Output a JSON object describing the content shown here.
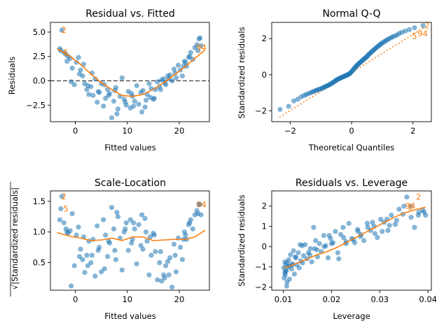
{
  "colors": {
    "points": "#1f77b4",
    "smooth": "#ff7f0e",
    "refline": "#555555"
  },
  "chart_data": [
    {
      "type": "scatter",
      "title": "Residual vs. Fitted",
      "xlabel": "Fitted values",
      "ylabel": "Residuals",
      "xlim": [
        -4.8,
        25.8
      ],
      "ylim": [
        -4.2,
        6.0
      ],
      "xticks": [
        0,
        10,
        20
      ],
      "yticks": [
        -2.5,
        0.0,
        2.5,
        5.0
      ],
      "xtick_labels": [
        "0",
        "10",
        "20"
      ],
      "ytick_labels": [
        "−2.5",
        "0.0",
        "2.5",
        "5.0"
      ],
      "hline": 0,
      "x": [
        -3.0,
        -2.6,
        -2.2,
        -1.8,
        -1.4,
        -1.0,
        -0.6,
        -0.2,
        0.2,
        0.6,
        1.0,
        1.4,
        1.8,
        2.2,
        2.6,
        3.0,
        3.4,
        3.8,
        4.2,
        4.6,
        5.0,
        5.4,
        5.8,
        6.2,
        6.6,
        7.0,
        7.4,
        7.8,
        8.2,
        8.6,
        9.0,
        9.4,
        9.8,
        10.2,
        10.6,
        11.0,
        11.4,
        11.8,
        12.2,
        12.6,
        13.0,
        13.4,
        13.8,
        14.2,
        14.6,
        15.0,
        15.4,
        15.8,
        16.2,
        16.6,
        17.0,
        17.4,
        17.8,
        18.2,
        18.6,
        19.0,
        19.4,
        19.8,
        20.2,
        20.6,
        21.0,
        21.4,
        21.8,
        22.2,
        22.6,
        23.0,
        23.4,
        23.8,
        24.2,
        -2.8,
        -1.6,
        0.8,
        3.2,
        5.6,
        8.0,
        10.8,
        13.6,
        16.4,
        19.2,
        22.0,
        24.0,
        -0.8,
        2.4,
        6.4,
        9.6,
        12.8,
        15.2,
        18.0,
        20.8,
        23.6,
        4.4,
        11.2,
        17.2,
        1.6,
        7.6,
        14.4,
        21.2
      ],
      "y": [
        3.3,
        5.2,
        2.9,
        2.7,
        2.5,
        2.3,
        1.3,
        -0.4,
        1.9,
        2.4,
        1.1,
        0.5,
        -0.3,
        -0.9,
        -1.4,
        -0.6,
        -1.5,
        0.2,
        -2.2,
        -1.2,
        -0.3,
        -2.6,
        -1.8,
        -0.9,
        -1.3,
        -3.8,
        -2.1,
        -0.7,
        -2.9,
        -1.6,
        0.3,
        -1.9,
        -2.5,
        -1.1,
        -2.8,
        -1.6,
        -2.1,
        -0.5,
        -2.4,
        -1.2,
        -1.0,
        -2.7,
        -1.4,
        -0.3,
        -0.8,
        -1.9,
        -0.9,
        -0.1,
        -0.6,
        0.1,
        0.2,
        -0.4,
        0.5,
        0.6,
        0.0,
        1.2,
        0.3,
        1.6,
        1.1,
        0.5,
        2.0,
        1.5,
        2.4,
        2.9,
        2.2,
        3.4,
        3.7,
        4.3,
        3.6,
        3.1,
        2.0,
        0.7,
        0.8,
        -0.4,
        -3.4,
        -1.3,
        -2.0,
        -0.9,
        0.8,
        2.5,
        4.4,
        -0.1,
        -0.5,
        -1.5,
        -2.2,
        -3.2,
        -1.8,
        0.2,
        1.5,
        3.1,
        -1.1,
        -2.6,
        -0.2,
        1.7,
        -1.0,
        -1.7,
        1.9
      ],
      "smooth_x": [
        -3.5,
        -1,
        1,
        3,
        5,
        7,
        9,
        11,
        13,
        15,
        17,
        19,
        21,
        23,
        25
      ],
      "smooth_y": [
        3.3,
        2.5,
        1.7,
        0.7,
        -0.2,
        -0.9,
        -1.5,
        -1.6,
        -1.4,
        -0.9,
        -0.2,
        0.6,
        1.4,
        2.3,
        3.2
      ],
      "annotations": [
        {
          "text": "2",
          "x": -3.0,
          "y": 5.2
        },
        {
          "text": "5",
          "x": -2.6,
          "y": 2.9
        },
        {
          "text": "94",
          "x": 23.0,
          "y": 3.4
        }
      ]
    },
    {
      "type": "scatter",
      "title": "Normal Q-Q",
      "xlabel": "Theoretical Quantiles",
      "ylabel": "Standardized residuals",
      "xlim": [
        -2.6,
        2.6
      ],
      "ylim": [
        -2.6,
        2.9
      ],
      "xticks": [
        -2,
        0,
        2
      ],
      "yticks": [
        -2,
        0,
        2
      ],
      "xtick_labels": [
        "−2",
        "0",
        "2"
      ],
      "ytick_labels": [
        "−2",
        "0",
        "2"
      ],
      "refline": [
        [
          -2.35,
          -2.35
        ],
        [
          2.35,
          2.6
        ]
      ],
      "q_x": [
        -2.33,
        -2.05,
        -1.88,
        -1.75,
        -1.64,
        -1.55,
        -1.48,
        -1.41,
        -1.34,
        -1.28,
        -1.23,
        -1.17,
        -1.13,
        -1.08,
        -1.04,
        -0.99,
        -0.95,
        -0.92,
        -0.88,
        -0.84,
        -0.81,
        -0.77,
        -0.74,
        -0.71,
        -0.67,
        -0.64,
        -0.61,
        -0.58,
        -0.55,
        -0.52,
        -0.5,
        -0.47,
        -0.44,
        -0.41,
        -0.39,
        -0.36,
        -0.33,
        -0.31,
        -0.28,
        -0.25,
        -0.23,
        -0.2,
        -0.18,
        -0.15,
        -0.13,
        -0.1,
        -0.08,
        -0.05,
        -0.03,
        0.0,
        0.03,
        0.05,
        0.08,
        0.1,
        0.13,
        0.15,
        0.18,
        0.2,
        0.23,
        0.25,
        0.28,
        0.31,
        0.33,
        0.36,
        0.39,
        0.41,
        0.44,
        0.47,
        0.5,
        0.52,
        0.55,
        0.58,
        0.61,
        0.64,
        0.67,
        0.71,
        0.74,
        0.77,
        0.81,
        0.84,
        0.88,
        0.92,
        0.95,
        0.99,
        1.04,
        1.08,
        1.13,
        1.17,
        1.23,
        1.28,
        1.34,
        1.41,
        1.48,
        1.55,
        1.64,
        1.75,
        1.88,
        2.05,
        2.33
      ],
      "q_y": [
        -1.92,
        -1.75,
        -1.45,
        -1.35,
        -1.22,
        -1.15,
        -1.1,
        -1.05,
        -1.0,
        -0.95,
        -0.92,
        -0.88,
        -0.85,
        -0.82,
        -0.8,
        -0.77,
        -0.74,
        -0.71,
        -0.68,
        -0.65,
        -0.62,
        -0.6,
        -0.57,
        -0.54,
        -0.5,
        -0.47,
        -0.44,
        -0.4,
        -0.37,
        -0.33,
        -0.3,
        -0.27,
        -0.24,
        -0.22,
        -0.2,
        -0.18,
        -0.16,
        -0.14,
        -0.12,
        -0.1,
        -0.08,
        -0.06,
        -0.04,
        -0.02,
        0.0,
        0.02,
        0.05,
        0.08,
        0.12,
        0.17,
        0.22,
        0.27,
        0.33,
        0.38,
        0.42,
        0.47,
        0.52,
        0.56,
        0.6,
        0.64,
        0.68,
        0.72,
        0.76,
        0.8,
        0.84,
        0.88,
        0.92,
        0.96,
        1.0,
        1.05,
        1.1,
        1.15,
        1.2,
        1.25,
        1.3,
        1.35,
        1.4,
        1.45,
        1.5,
        1.55,
        1.6,
        1.65,
        1.7,
        1.75,
        1.8,
        1.85,
        1.9,
        1.95,
        2.0,
        2.05,
        2.1,
        2.15,
        2.2,
        2.28,
        2.35,
        2.42,
        2.5,
        2.6,
        2.72
      ],
      "annotations": [
        {
          "text": "5",
          "x": 1.92,
          "y": 2.15
        },
        {
          "text": "94",
          "x": 2.1,
          "y": 2.28
        },
        {
          "text": "2",
          "x": 2.33,
          "y": 2.72
        }
      ]
    },
    {
      "type": "scatter",
      "title": "Scale-Location",
      "xlabel": "Fitted values",
      "ylabel": "√|Standardized residuals|",
      "xlim": [
        -4.8,
        25.8
      ],
      "ylim": [
        0.05,
        1.67
      ],
      "xticks": [
        0,
        10,
        20
      ],
      "yticks": [
        0.5,
        1.0,
        1.5
      ],
      "xtick_labels": [
        "0",
        "10",
        "20"
      ],
      "ytick_labels": [
        "0.5",
        "1.0",
        "1.5"
      ],
      "x": [
        -3.0,
        -2.6,
        -2.2,
        -1.8,
        -1.4,
        -1.0,
        -0.6,
        -0.2,
        0.2,
        0.6,
        1.0,
        1.4,
        1.8,
        2.2,
        2.6,
        3.0,
        3.4,
        3.8,
        4.2,
        4.6,
        5.0,
        5.4,
        5.8,
        6.2,
        6.6,
        7.0,
        7.4,
        7.8,
        8.2,
        8.6,
        9.0,
        9.4,
        9.8,
        10.2,
        10.6,
        11.0,
        11.4,
        11.8,
        12.2,
        12.6,
        13.0,
        13.4,
        13.8,
        14.2,
        14.6,
        15.0,
        15.4,
        15.8,
        16.2,
        16.6,
        17.0,
        17.4,
        17.8,
        18.2,
        18.6,
        19.0,
        19.4,
        19.8,
        20.2,
        20.6,
        21.0,
        21.4,
        21.8,
        22.2,
        22.6,
        23.0,
        23.4,
        23.8,
        24.2,
        -2.8,
        -1.6,
        0.8,
        3.2,
        5.6,
        8.0,
        10.8,
        13.6,
        16.4,
        19.2,
        22.0,
        24.0,
        -0.8,
        2.4,
        6.4,
        9.6,
        12.8,
        15.2,
        18.0,
        20.8,
        23.6,
        4.4,
        11.2,
        17.2,
        1.6,
        7.6,
        14.4,
        21.2
      ],
      "y": [
        1.2,
        1.58,
        1.15,
        1.05,
        0.98,
        1.02,
        1.3,
        0.45,
        0.95,
        1.08,
        0.72,
        0.55,
        0.34,
        0.62,
        0.85,
        0.5,
        0.88,
        0.28,
        1.1,
        0.75,
        0.35,
        1.2,
        0.95,
        0.6,
        0.82,
        1.4,
        1.05,
        0.55,
        1.25,
        0.9,
        0.38,
        1.0,
        1.15,
        0.7,
        1.2,
        0.88,
        1.05,
        0.48,
        1.12,
        0.78,
        0.72,
        1.22,
        0.85,
        0.3,
        0.62,
        0.98,
        0.68,
        0.22,
        0.5,
        0.2,
        0.3,
        0.45,
        0.52,
        0.58,
        0.1,
        0.8,
        0.35,
        0.9,
        0.75,
        0.55,
        1.0,
        0.88,
        1.12,
        1.2,
        1.05,
        1.28,
        1.35,
        1.45,
        1.28,
        1.38,
        1.0,
        0.6,
        0.62,
        0.4,
        1.32,
        0.82,
        1.0,
        0.68,
        0.62,
        1.15,
        1.45,
        0.12,
        0.45,
        0.85,
        1.05,
        1.28,
        0.95,
        0.3,
        0.88,
        1.3,
        0.7,
        1.15,
        0.25,
        0.92,
        0.7,
        0.92,
        0.95
      ],
      "smooth_x": [
        -3.5,
        -1,
        1,
        3,
        5,
        7,
        9,
        11,
        13,
        15,
        17,
        19,
        21,
        23,
        25
      ],
      "smooth_y": [
        0.99,
        0.93,
        0.9,
        0.86,
        0.87,
        0.9,
        0.86,
        0.92,
        0.92,
        0.86,
        0.87,
        0.88,
        0.88,
        0.92,
        1.03
      ],
      "annotations": [
        {
          "text": "2",
          "x": -3.0,
          "y": 1.58
        },
        {
          "text": "5",
          "x": -2.6,
          "y": 1.38
        },
        {
          "text": "94",
          "x": 23.0,
          "y": 1.45
        }
      ]
    },
    {
      "type": "scatter",
      "title": "Residuals vs. Leverage",
      "xlabel": "Leverage",
      "ylabel": "Standardized residuals",
      "xlim": [
        0.0076,
        0.0407
      ],
      "ylim": [
        -2.15,
        2.75
      ],
      "xticks": [
        0.01,
        0.02,
        0.03,
        0.04
      ],
      "yticks": [
        -2,
        -1,
        0,
        1,
        2
      ],
      "xtick_labels": [
        "0.01",
        "0.02",
        "0.03",
        "0.04"
      ],
      "ytick_labels": [
        "−2",
        "−1",
        "0",
        "1",
        "2"
      ],
      "x": [
        0.0101,
        0.0102,
        0.0103,
        0.0103,
        0.0104,
        0.0105,
        0.0106,
        0.0107,
        0.0108,
        0.011,
        0.0111,
        0.0113,
        0.0115,
        0.0117,
        0.0119,
        0.0121,
        0.0123,
        0.0126,
        0.0128,
        0.0131,
        0.0133,
        0.0136,
        0.0139,
        0.0142,
        0.0145,
        0.0149,
        0.0152,
        0.0156,
        0.0159,
        0.0163,
        0.0167,
        0.0171,
        0.0175,
        0.0179,
        0.0184,
        0.0188,
        0.0193,
        0.0198,
        0.0203,
        0.0208,
        0.0213,
        0.0219,
        0.0224,
        0.023,
        0.0236,
        0.0242,
        0.0248,
        0.0254,
        0.0261,
        0.0267,
        0.0274,
        0.0281,
        0.0288,
        0.0295,
        0.0302,
        0.0309,
        0.0317,
        0.0324,
        0.0332,
        0.034,
        0.0348,
        0.0356,
        0.0364,
        0.0372,
        0.0381,
        0.0389,
        0.0395,
        0.0105,
        0.0112,
        0.0125,
        0.014,
        0.0155,
        0.017,
        0.0185,
        0.02,
        0.0215,
        0.023,
        0.0245,
        0.026,
        0.0275,
        0.029,
        0.0305,
        0.032,
        0.0335,
        0.035,
        0.0365,
        0.038,
        0.0392,
        0.0108,
        0.0118,
        0.0135,
        0.0165,
        0.0195,
        0.0225,
        0.0255,
        0.0285,
        0.0315
      ],
      "y": [
        -1.05,
        -1.55,
        -1.3,
        -0.75,
        -1.4,
        -0.9,
        -1.2,
        -1.95,
        -0.8,
        -1.0,
        -0.65,
        -1.6,
        -0.4,
        -1.1,
        -0.85,
        -0.2,
        -1.35,
        -0.55,
        -0.9,
        -0.3,
        -1.05,
        -0.7,
        0.05,
        -0.45,
        0.1,
        -0.6,
        -0.3,
        -0.1,
        -0.75,
        0.95,
        0.3,
        -0.5,
        0.15,
        -0.25,
        0.55,
        0.05,
        -0.55,
        0.4,
        0.2,
        0.75,
        -0.3,
        0.6,
        0.95,
        0.15,
        1.15,
        0.4,
        0.2,
        0.85,
        0.6,
        0.3,
        1.15,
        0.8,
        1.0,
        0.45,
        1.35,
        1.2,
        0.8,
        1.55,
        1.1,
        1.85,
        1.6,
        2.45,
        2.0,
        0.95,
        1.7,
        1.8,
        1.55,
        -1.2,
        -0.95,
        -0.5,
        -0.8,
        -0.4,
        -0.15,
        0.0,
        0.15,
        -0.6,
        0.25,
        0.35,
        0.5,
        0.95,
        0.65,
        0.75,
        1.05,
        1.3,
        2.0,
        1.45,
        1.55,
        1.7,
        -1.75,
        -0.9,
        0.1,
        -0.1,
        0.55,
        0.45,
        0.75,
        1.2,
        1.35
      ],
      "smooth_x": [
        0.0101,
        0.0115,
        0.013,
        0.015,
        0.017,
        0.019,
        0.021,
        0.023,
        0.025,
        0.027,
        0.029,
        0.031,
        0.033,
        0.035,
        0.037,
        0.0395
      ],
      "smooth_y": [
        -1.05,
        -0.95,
        -0.8,
        -0.6,
        -0.4,
        -0.25,
        -0.05,
        0.2,
        0.45,
        0.7,
        0.95,
        1.2,
        1.45,
        1.65,
        1.8,
        1.95
      ],
      "annotations": [
        {
          "text": "94",
          "x": 0.035,
          "y": 2.0
        },
        {
          "text": "5",
          "x": 0.0355,
          "y": 1.95
        },
        {
          "text": "2",
          "x": 0.0372,
          "y": 2.45
        }
      ]
    }
  ]
}
